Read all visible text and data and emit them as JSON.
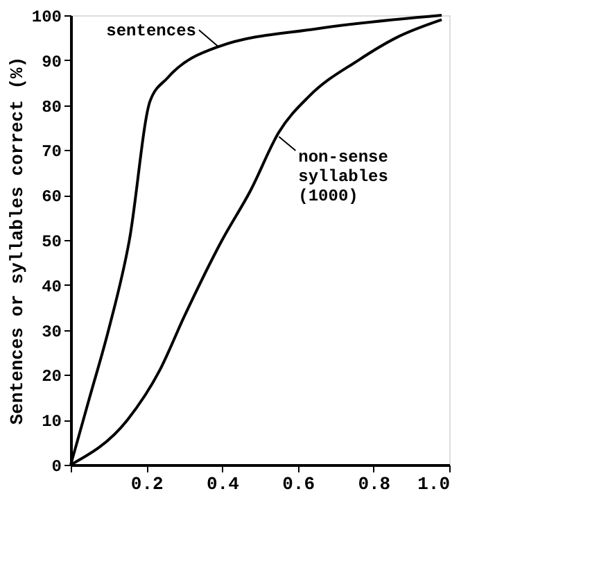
{
  "chart_data": {
    "type": "line",
    "ylabel": "Sentences or syllables correct (%)",
    "xlim": [
      0,
      1.0
    ],
    "ylim": [
      0,
      100
    ],
    "xticks": [
      {
        "value": 0,
        "label": null
      },
      {
        "value": 0.2,
        "label": "0.2"
      },
      {
        "value": 0.4,
        "label": "0.4"
      },
      {
        "value": 0.6,
        "label": "0.6"
      },
      {
        "value": 0.8,
        "label": "0.8"
      },
      {
        "value": 1.0,
        "label": "1.0"
      }
    ],
    "yticks": [
      0,
      10,
      20,
      30,
      40,
      50,
      60,
      70,
      80,
      90,
      100
    ],
    "grid": false,
    "marker": "none",
    "line_style": "solid",
    "series": [
      {
        "color": "#000000",
        "x": [
          0,
          0.05,
          0.1,
          0.155,
          0.21,
          0.255,
          0.39,
          0.65,
          0.98
        ],
        "values": [
          0,
          15,
          30,
          50,
          81,
          86,
          93,
          97,
          100
        ]
      },
      {
        "color": "#000000",
        "x": [
          0,
          0.15,
          0.235,
          0.3,
          0.4,
          0.475,
          0.55,
          0.63,
          0.76,
          0.86,
          0.98
        ],
        "values": [
          0,
          10,
          21,
          33,
          50,
          61,
          74,
          82,
          90,
          95,
          99
        ]
      }
    ],
    "annotations": [
      {
        "text": "sentences",
        "x": 0.39,
        "y": 93
      },
      {
        "text": "non-sense syllables (1000)",
        "x": 0.55,
        "y": 73
      }
    ]
  }
}
